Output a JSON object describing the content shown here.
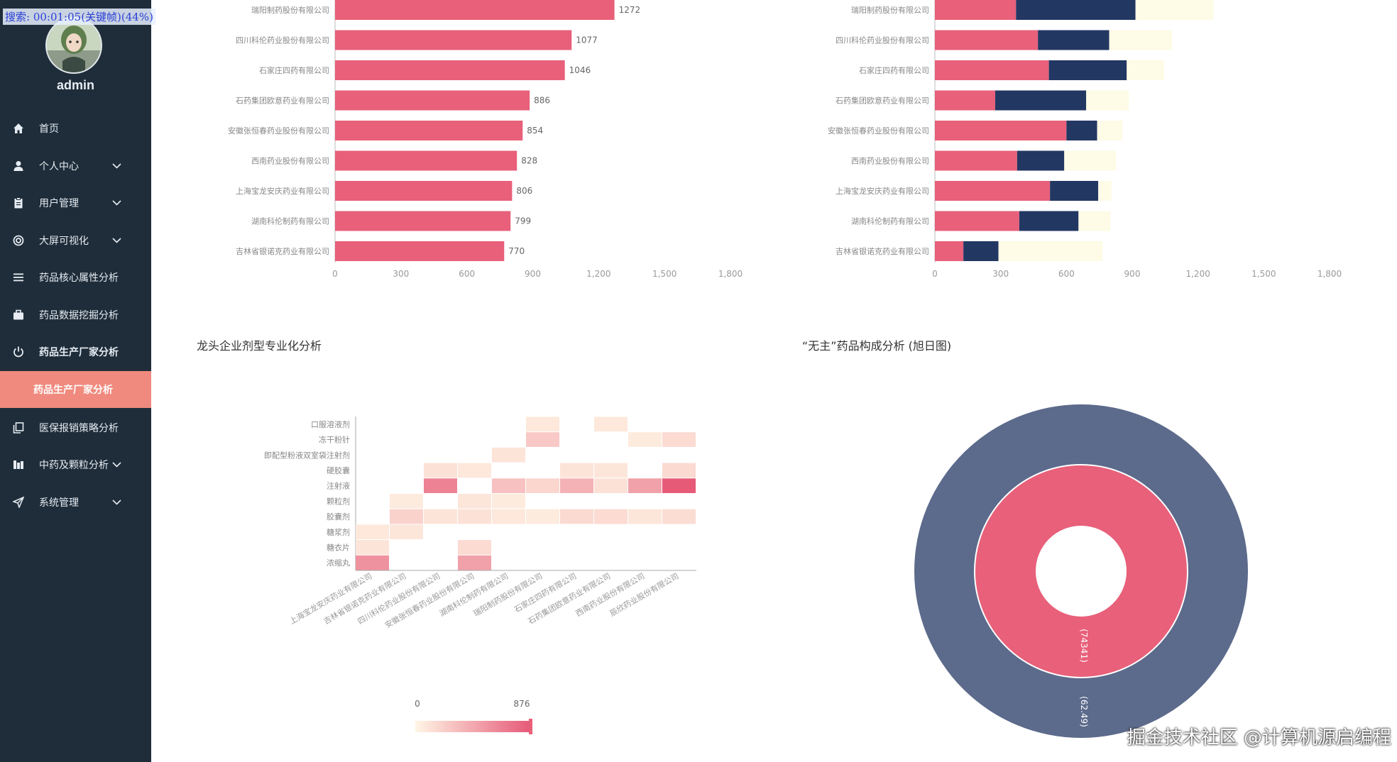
{
  "overlay": {
    "search_text": "搜索: 00:01:05(关键帧)(44%)"
  },
  "sidebar": {
    "username": "admin",
    "items": [
      {
        "label": "首页",
        "icon": "home-icon",
        "chevron": false
      },
      {
        "label": "个人中心",
        "icon": "user-icon",
        "chevron": true
      },
      {
        "label": "用户管理",
        "icon": "clipboard-icon",
        "chevron": true
      },
      {
        "label": "大屏可视化",
        "icon": "target-icon",
        "chevron": true
      },
      {
        "label": "药品核心属性分析",
        "icon": "list-icon",
        "chevron": false
      },
      {
        "label": "药品数据挖掘分析",
        "icon": "briefcase-icon",
        "chevron": false
      },
      {
        "label": "药品生产厂家分析",
        "icon": "power-icon",
        "chevron": false,
        "active": true
      },
      {
        "label": "医保报销策略分析",
        "icon": "copy-icon",
        "chevron": false
      },
      {
        "label": "中药及颗粒分析",
        "icon": "bar-chart-icon",
        "chevron": true
      },
      {
        "label": "系统管理",
        "icon": "send-icon",
        "chevron": true
      }
    ],
    "active_sub_label": "药品生产厂家分析"
  },
  "colors": {
    "pink": "#e8607a",
    "navy": "#233763",
    "cream": "#fefbe6",
    "sidebar_bg": "#1f2d3a",
    "active": "#f08a7e",
    "sunburst_outer": "#5c6a8b"
  },
  "chart_data": [
    {
      "type": "bar",
      "orientation": "horizontal",
      "categories": [
        "瑞阳制药股份有限公司",
        "四川科伦药业股份有限公司",
        "石家庄四药有限公司",
        "石药集团欧意药业有限公司",
        "安徽张恒春药业股份有限公司",
        "西南药业股份有限公司",
        "上海宝龙安庆药业有限公司",
        "湖南科伦制药有限公司",
        "吉林省银诺克药业有限公司"
      ],
      "values": [
        1272,
        1077,
        1046,
        886,
        854,
        828,
        806,
        799,
        770
      ],
      "x_ticks": [
        "0",
        "300",
        "600",
        "900",
        "1,200",
        "1,500",
        "1,800"
      ],
      "xlim": [
        0,
        1800
      ]
    },
    {
      "type": "bar",
      "orientation": "horizontal",
      "stacked": true,
      "categories": [
        "瑞阳制药股份有限公司",
        "四川科伦药业股份有限公司",
        "石家庄四药有限公司",
        "石药集团欧意药业有限公司",
        "安徽张恒春药业股份有限公司",
        "西南药业股份有限公司",
        "上海宝龙安庆药业有限公司",
        "湖南科伦制药有限公司",
        "吉林省银诺克药业有限公司"
      ],
      "series": [
        {
          "color": "#e8607a",
          "values": [
            370,
            470,
            520,
            275,
            600,
            375,
            525,
            385,
            130
          ]
        },
        {
          "color": "#233763",
          "values": [
            545,
            325,
            355,
            415,
            140,
            215,
            220,
            270,
            160
          ]
        },
        {
          "color": "#fefbe6",
          "values": [
            355,
            285,
            170,
            195,
            115,
            235,
            60,
            145,
            475
          ]
        }
      ],
      "x_ticks": [
        "0",
        "300",
        "600",
        "900",
        "1,200",
        "1,500",
        "1,800"
      ],
      "xlim": [
        0,
        1800
      ]
    },
    {
      "type": "heatmap",
      "title": "龙头企业剂型专业化分析",
      "y_categories": [
        "口服溶液剂",
        "冻干粉针",
        "即配型粉液双室袋注射剂",
        "硬胶囊",
        "注射液",
        "颗粒剂",
        "胶囊剂",
        "糖浆剂",
        "糖衣片",
        "浓缩丸"
      ],
      "x_categories": [
        "上海宝龙安庆药业有限公司",
        "吉林省银诺克药业有限公司",
        "四川科伦药业股份有限公司",
        "安徽张恒春药业股份有限公司",
        "湖南科伦制药有限公司",
        "瑞阳制药股份有限公司",
        "石家庄四药有限公司",
        "石药集团欧意药业有限公司",
        "西南药业股份有限公司",
        "辰欣药业股份有限公司"
      ],
      "cells": [
        [
          0,
          7,
          80
        ],
        [
          0,
          8,
          100
        ],
        [
          0,
          9,
          560
        ],
        [
          1,
          5,
          60
        ],
        [
          1,
          6,
          200
        ],
        [
          1,
          7,
          90
        ],
        [
          2,
          3,
          120
        ],
        [
          2,
          4,
          650
        ],
        [
          2,
          6,
          100
        ],
        [
          3,
          3,
          80
        ],
        [
          3,
          5,
          90
        ],
        [
          3,
          6,
          120
        ],
        [
          3,
          8,
          150
        ],
        [
          3,
          9,
          480
        ],
        [
          4,
          2,
          100
        ],
        [
          4,
          4,
          300
        ],
        [
          4,
          5,
          60
        ],
        [
          4,
          6,
          80
        ],
        [
          5,
          0,
          80
        ],
        [
          5,
          1,
          250
        ],
        [
          5,
          4,
          180
        ],
        [
          5,
          6,
          60
        ],
        [
          6,
          3,
          100
        ],
        [
          6,
          4,
          380
        ],
        [
          6,
          6,
          160
        ],
        [
          7,
          0,
          80
        ],
        [
          7,
          3,
          90
        ],
        [
          7,
          4,
          120
        ],
        [
          7,
          6,
          150
        ],
        [
          8,
          1,
          60
        ],
        [
          8,
          4,
          480
        ],
        [
          8,
          6,
          90
        ],
        [
          9,
          1,
          150
        ],
        [
          9,
          3,
          160
        ],
        [
          9,
          4,
          876
        ],
        [
          9,
          6,
          140
        ]
      ],
      "visual_map": {
        "min": 0,
        "max": 876,
        "min_label": "0",
        "max_label": "876"
      }
    },
    {
      "type": "sunburst",
      "title": "“无主”药品构成分析 (旭日图)",
      "rings": [
        {
          "label": "(74341)",
          "color": "#e8607a"
        },
        {
          "label": "(62.49)",
          "color": "#5c6a8b"
        }
      ]
    }
  ],
  "watermark": "掘金技术社区 @计算机源启编程"
}
